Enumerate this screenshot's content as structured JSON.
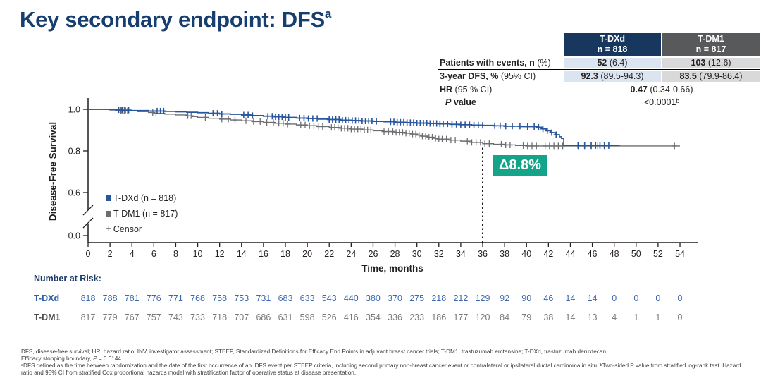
{
  "colors": {
    "title_navy": "#163e6f",
    "table_header_navy": "#17375e",
    "table_header_gray": "#58595b",
    "cell_light_blue": "#dbe5f1",
    "cell_light_gray": "#d9d9d9",
    "tdxd_blue": "#28569c",
    "tdm1_gray": "#6b6d70",
    "at_risk_blue": "#3a68b0",
    "at_risk_gray": "#77787b",
    "delta_green": "#14a48a",
    "axis_black": "#231f20"
  },
  "header": {
    "title": "Key secondary endpoint: DFS",
    "title_sup": "a"
  },
  "summary_table": {
    "columns": [
      {
        "drug": "T-DXd",
        "n": "n = 818"
      },
      {
        "drug": "T-DM1",
        "n": "n = 817"
      }
    ],
    "rows": [
      {
        "label_bold": "Patients with events, n",
        "label_rest": " (%)",
        "tdxd_bold": "52",
        "tdxd_rest": " (6.4)",
        "tdm1_bold": "103",
        "tdm1_rest": " (12.6)"
      },
      {
        "label_bold": "3-year DFS, %",
        "label_rest": " (95% CI)",
        "tdxd_bold": "92.3",
        "tdxd_rest": " (89.5-94.3)",
        "tdm1_bold": "83.5",
        "tdm1_rest": " (79.9-86.4)"
      }
    ],
    "hr_label_bold": "HR",
    "hr_label_rest": " (95 % CI)",
    "hr_value_bold": "0.47",
    "hr_value_rest": " (0.34-0.66)",
    "p_label_italic": "P",
    "p_label_rest": " value",
    "p_value": "<0.0001ᵇ"
  },
  "chart_data": {
    "type": "line",
    "subtype": "kaplan-meier",
    "xlabel": "Time, months",
    "ylabel": "Disease-Free Survival",
    "xticks": [
      0,
      2,
      4,
      6,
      8,
      10,
      12,
      14,
      16,
      18,
      20,
      22,
      24,
      26,
      28,
      30,
      32,
      34,
      36,
      38,
      40,
      42,
      44,
      46,
      48,
      50,
      52,
      54
    ],
    "yticks": [
      "1.0",
      "0.8",
      "0.6",
      "0.0"
    ],
    "ytick_values": [
      1.0,
      0.8,
      0.6,
      0.0
    ],
    "y_axis_break": true,
    "xlim": [
      0,
      54
    ],
    "censor_glyph": "+",
    "censor_label": "Censor",
    "delta_annotation": {
      "label": "Δ8.8%",
      "at_month": 36
    },
    "series": [
      {
        "name": "T-DXd (n = 818)",
        "color": "#28569c",
        "steps": [
          [
            0,
            1.0
          ],
          [
            2,
            0.998
          ],
          [
            3,
            0.996
          ],
          [
            4,
            0.994
          ],
          [
            5.5,
            0.992
          ],
          [
            7,
            0.99
          ],
          [
            8,
            0.988
          ],
          [
            9,
            0.986
          ],
          [
            10,
            0.984
          ],
          [
            11,
            0.981
          ],
          [
            12,
            0.978
          ],
          [
            13,
            0.976
          ],
          [
            14,
            0.973
          ],
          [
            15,
            0.97
          ],
          [
            16,
            0.967
          ],
          [
            17,
            0.964
          ],
          [
            18,
            0.961
          ],
          [
            19,
            0.958
          ],
          [
            20,
            0.956
          ],
          [
            21,
            0.953
          ],
          [
            22,
            0.951
          ],
          [
            23,
            0.948
          ],
          [
            24,
            0.946
          ],
          [
            25,
            0.944
          ],
          [
            26,
            0.942
          ],
          [
            27,
            0.94
          ],
          [
            28,
            0.938
          ],
          [
            29,
            0.936
          ],
          [
            30,
            0.934
          ],
          [
            31,
            0.932
          ],
          [
            32,
            0.93
          ],
          [
            33,
            0.928
          ],
          [
            34,
            0.926
          ],
          [
            35,
            0.924
          ],
          [
            36,
            0.923
          ],
          [
            37,
            0.921
          ],
          [
            38,
            0.919
          ],
          [
            39.5,
            0.917
          ],
          [
            41,
            0.914
          ],
          [
            41.4,
            0.906
          ],
          [
            41.8,
            0.897
          ],
          [
            42.2,
            0.888
          ],
          [
            42.6,
            0.878
          ],
          [
            43,
            0.868
          ],
          [
            43.2,
            0.86
          ],
          [
            43.4,
            0.826
          ],
          [
            48.5,
            0.826
          ]
        ],
        "censor_months": [
          2.8,
          3.1,
          3.4,
          3.7,
          6.3,
          6.6,
          6.9,
          11.4,
          11.8,
          12.2,
          14.2,
          14.6,
          15.0,
          16.4,
          16.8,
          17.1,
          17.4,
          17.7,
          18.0,
          18.3,
          19.3,
          19.7,
          20.1,
          20.5,
          20.9,
          22.0,
          22.3,
          22.6,
          22.9,
          23.2,
          23.5,
          23.8,
          24.1,
          24.4,
          24.7,
          25.0,
          25.3,
          25.6,
          25.9,
          26.3,
          27.6,
          27.9,
          28.2,
          28.5,
          28.8,
          29.1,
          29.4,
          29.7,
          30.0,
          30.3,
          30.6,
          30.9,
          31.2,
          31.5,
          31.8,
          32.1,
          32.4,
          32.8,
          33.2,
          33.6,
          34.0,
          34.4,
          34.8,
          35.2,
          35.6,
          36.0,
          37.1,
          37.6,
          38.1,
          38.7,
          39.4,
          40.1,
          40.7,
          41.1,
          41.5,
          41.9,
          42.3,
          42.7,
          44.7,
          45.3,
          45.9,
          46.3,
          46.7,
          47.1,
          47.5
        ]
      },
      {
        "name": "T-DM1 (n = 817)",
        "color": "#6b6d70",
        "steps": [
          [
            0,
            1.0
          ],
          [
            2,
            0.997
          ],
          [
            2.5,
            0.995
          ],
          [
            3.5,
            0.992
          ],
          [
            4.5,
            0.989
          ],
          [
            5.5,
            0.985
          ],
          [
            6,
            0.981
          ],
          [
            7,
            0.977
          ],
          [
            8,
            0.973
          ],
          [
            9,
            0.969
          ],
          [
            9.5,
            0.965
          ],
          [
            10,
            0.961
          ],
          [
            11,
            0.957
          ],
          [
            12,
            0.953
          ],
          [
            13,
            0.949
          ],
          [
            14,
            0.945
          ],
          [
            15,
            0.941
          ],
          [
            16,
            0.937
          ],
          [
            17,
            0.933
          ],
          [
            18,
            0.929
          ],
          [
            19,
            0.925
          ],
          [
            20,
            0.921
          ],
          [
            21,
            0.917
          ],
          [
            22,
            0.913
          ],
          [
            23,
            0.909
          ],
          [
            24,
            0.905
          ],
          [
            25,
            0.901
          ],
          [
            26,
            0.897
          ],
          [
            27,
            0.893
          ],
          [
            28,
            0.889
          ],
          [
            29,
            0.885
          ],
          [
            29.5,
            0.881
          ],
          [
            30,
            0.876
          ],
          [
            30.5,
            0.871
          ],
          [
            31,
            0.866
          ],
          [
            31.5,
            0.861
          ],
          [
            32,
            0.857
          ],
          [
            33,
            0.852
          ],
          [
            34,
            0.847
          ],
          [
            35,
            0.841
          ],
          [
            36,
            0.835
          ],
          [
            37,
            0.832
          ],
          [
            38,
            0.829
          ],
          [
            39,
            0.826
          ],
          [
            40,
            0.824
          ],
          [
            54,
            0.824
          ]
        ],
        "censor_months": [
          3.0,
          3.3,
          3.6,
          5.9,
          6.2,
          9.1,
          9.4,
          10.7,
          12.2,
          12.8,
          13.4,
          14.4,
          15.1,
          15.7,
          16.3,
          16.9,
          17.4,
          17.8,
          18.2,
          19.4,
          19.8,
          20.2,
          20.6,
          21.0,
          21.4,
          22.2,
          22.5,
          22.8,
          23.1,
          23.4,
          23.7,
          24.0,
          24.3,
          24.6,
          24.9,
          25.2,
          25.5,
          25.8,
          27.0,
          27.4,
          27.8,
          28.1,
          28.4,
          28.7,
          29.0,
          29.3,
          29.6,
          29.9,
          30.2,
          30.5,
          30.8,
          31.1,
          31.4,
          31.7,
          32.0,
          32.3,
          32.7,
          33.1,
          33.5,
          34.6,
          35.0,
          35.4,
          35.8,
          36.2,
          36.6,
          37.7,
          38.1,
          38.5,
          39.7,
          40.1,
          40.5,
          40.9,
          41.7,
          42.1,
          42.5,
          42.9,
          43.3,
          44.7,
          45.3,
          45.9,
          46.5,
          47.1,
          53.5
        ]
      }
    ],
    "at_risk": {
      "heading": "Number at Risk:",
      "months": [
        0,
        2,
        4,
        6,
        8,
        10,
        12,
        14,
        16,
        18,
        20,
        22,
        24,
        26,
        28,
        30,
        32,
        34,
        36,
        38,
        40,
        42,
        44,
        46,
        48,
        50,
        52,
        54
      ],
      "rows": [
        {
          "label": "T-DXd",
          "color": "#3a68b0",
          "values": [
            818,
            788,
            781,
            776,
            771,
            768,
            758,
            753,
            731,
            683,
            633,
            543,
            440,
            380,
            370,
            275,
            218,
            212,
            129,
            92,
            90,
            46,
            14,
            14,
            0,
            0,
            0,
            0
          ]
        },
        {
          "label": "T-DM1",
          "color": "#77787b",
          "values": [
            817,
            779,
            767,
            757,
            743,
            733,
            718,
            707,
            686,
            631,
            598,
            526,
            416,
            354,
            336,
            233,
            186,
            177,
            120,
            84,
            79,
            38,
            14,
            13,
            4,
            1,
            1,
            0
          ]
        }
      ]
    }
  },
  "footnotes": {
    "line1": "DFS, disease-free survival; HR, hazard ratio; INV, investigator assessment; STEEP, Standardized Definitions for Efficacy End Points in adjuvant breast cancer trials; T-DM1, trastuzumab emtansine; T-DXd, trastuzumab deruxtecan.",
    "line2_prefix": "Efficacy stopping boundary, ",
    "line2_p": "P",
    "line2_suffix": " = 0.0144.",
    "para_ab": "ᵃDFS defined as the time between randomization and the date of the first occurrence of an IDFS event per STEEP criteria, including second primary non-breast cancer event or contralateral or ipsilateral ductal carcinoma in situ. ᵇTwo-sided P value from stratified log-rank test. Hazard ratio and 95% CI from stratified Cox proportional hazards model with stratification factor of operative status at disease presentation."
  }
}
